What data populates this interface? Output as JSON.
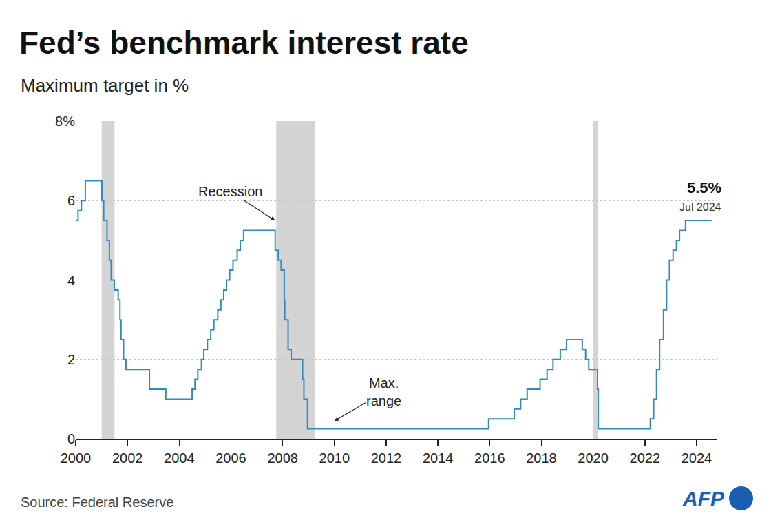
{
  "chart_data": {
    "type": "line",
    "title": "Fed’s benchmark interest rate",
    "subtitle": "Maximum target in %",
    "source": "Source: Federal Reserve",
    "logo": "AFP",
    "line_style": "step",
    "grid": true,
    "series": [
      {
        "name": "Maximum target",
        "color": "#2e8bc0",
        "x": [
          2000.0,
          2000.09,
          2000.22,
          2000.37,
          2001.01,
          2001.08,
          2001.21,
          2001.3,
          2001.37,
          2001.49,
          2001.64,
          2001.71,
          2001.75,
          2001.85,
          2001.94,
          2002.85,
          2003.48,
          2004.5,
          2004.61,
          2004.72,
          2004.86,
          2004.95,
          2005.09,
          2005.22,
          2005.34,
          2005.49,
          2005.61,
          2005.72,
          2005.83,
          2005.95,
          2006.08,
          2006.24,
          2006.36,
          2006.49,
          2007.71,
          2007.83,
          2007.94,
          2008.06,
          2008.08,
          2008.21,
          2008.33,
          2008.77,
          2008.82,
          2008.96,
          2015.96,
          2016.95,
          2017.2,
          2017.45,
          2017.95,
          2018.22,
          2018.45,
          2018.73,
          2018.97,
          2019.58,
          2019.71,
          2019.83,
          2020.17,
          2020.2,
          2022.21,
          2022.34,
          2022.45,
          2022.57,
          2022.72,
          2022.84,
          2022.95,
          2023.09,
          2023.22,
          2023.34,
          2023.57,
          2024.58
        ],
        "values": [
          5.5,
          5.75,
          6.0,
          6.5,
          6.0,
          5.5,
          5.0,
          4.5,
          4.0,
          3.75,
          3.5,
          3.0,
          2.5,
          2.0,
          1.75,
          1.25,
          1.0,
          1.25,
          1.5,
          1.75,
          2.0,
          2.25,
          2.5,
          2.75,
          3.0,
          3.25,
          3.5,
          3.75,
          4.0,
          4.25,
          4.5,
          4.75,
          5.0,
          5.25,
          4.75,
          4.5,
          4.25,
          3.5,
          3.0,
          2.25,
          2.0,
          1.5,
          1.0,
          0.25,
          0.5,
          0.75,
          1.0,
          1.25,
          1.5,
          1.75,
          2.0,
          2.25,
          2.5,
          2.25,
          2.0,
          1.75,
          1.25,
          0.25,
          0.5,
          1.0,
          1.75,
          2.5,
          3.25,
          4.0,
          4.5,
          4.75,
          5.0,
          5.25,
          5.5,
          5.5
        ]
      }
    ],
    "end_label": {
      "text": "5.5%",
      "date": "Jul 2024"
    },
    "recessions": [
      [
        2001.0,
        2001.5
      ],
      [
        2007.75,
        2009.25
      ],
      [
        2020.0,
        2020.2
      ]
    ],
    "annotations": [
      {
        "text": "Recession",
        "x": 2007.7,
        "y": 5.5
      },
      {
        "text": "Max.\nrange",
        "x": 2010.0,
        "y": 0.45
      }
    ],
    "xlim": [
      2000,
      2024.8
    ],
    "xticks": [
      2000,
      2002,
      2004,
      2006,
      2008,
      2010,
      2012,
      2014,
      2016,
      2018,
      2020,
      2022,
      2024
    ],
    "ylim": [
      0,
      8
    ],
    "yticks": [
      0,
      2,
      4,
      6,
      {
        "value": 8,
        "label": "8%"
      }
    ]
  }
}
